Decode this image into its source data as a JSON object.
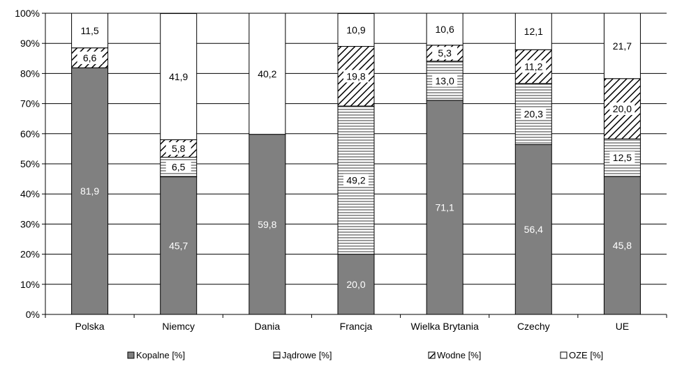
{
  "chart_data": {
    "type": "bar",
    "stacked": true,
    "percent": true,
    "categories": [
      "Polska",
      "Niemcy",
      "Dania",
      "Francja",
      "Wielka Brytania",
      "Czechy",
      "UE"
    ],
    "ylim": [
      0,
      100
    ],
    "yticks": [
      "0%",
      "10%",
      "20%",
      "30%",
      "40%",
      "50%",
      "60%",
      "70%",
      "80%",
      "90%",
      "100%"
    ],
    "grid": true,
    "legend_position": "bottom",
    "series": [
      {
        "name": "Kopalne [%]",
        "fill": "solid-gray",
        "color": "#808080",
        "values": [
          81.9,
          45.7,
          59.8,
          20.0,
          71.1,
          56.4,
          45.8
        ],
        "labels": [
          "81,9",
          "45,7",
          "59,8",
          "20,0",
          "71,1",
          "56,4",
          "45,8"
        ]
      },
      {
        "name": "Jądrowe [%]",
        "fill": "horizontal-lines",
        "color": "#000000",
        "values": [
          0,
          6.5,
          0,
          49.2,
          13.0,
          20.3,
          12.5
        ],
        "labels": [
          "",
          "6,5",
          "",
          "49,2",
          "13,0",
          "20,3",
          "12,5"
        ]
      },
      {
        "name": "Wodne [%]",
        "fill": "diagonal-lines",
        "color": "#000000",
        "values": [
          6.6,
          5.8,
          0,
          19.8,
          5.3,
          11.2,
          20.0
        ],
        "labels": [
          "6,6",
          "5,8",
          "",
          "19,8",
          "5,3",
          "11,2",
          "20,0"
        ]
      },
      {
        "name": "OZE [%]",
        "fill": "white",
        "color": "#ffffff",
        "values": [
          11.5,
          41.9,
          40.2,
          10.9,
          10.6,
          12.1,
          21.7
        ],
        "labels": [
          "11,5",
          "41,9",
          "40,2",
          "10,9",
          "10,6",
          "12,1",
          "21,7"
        ]
      }
    ]
  }
}
